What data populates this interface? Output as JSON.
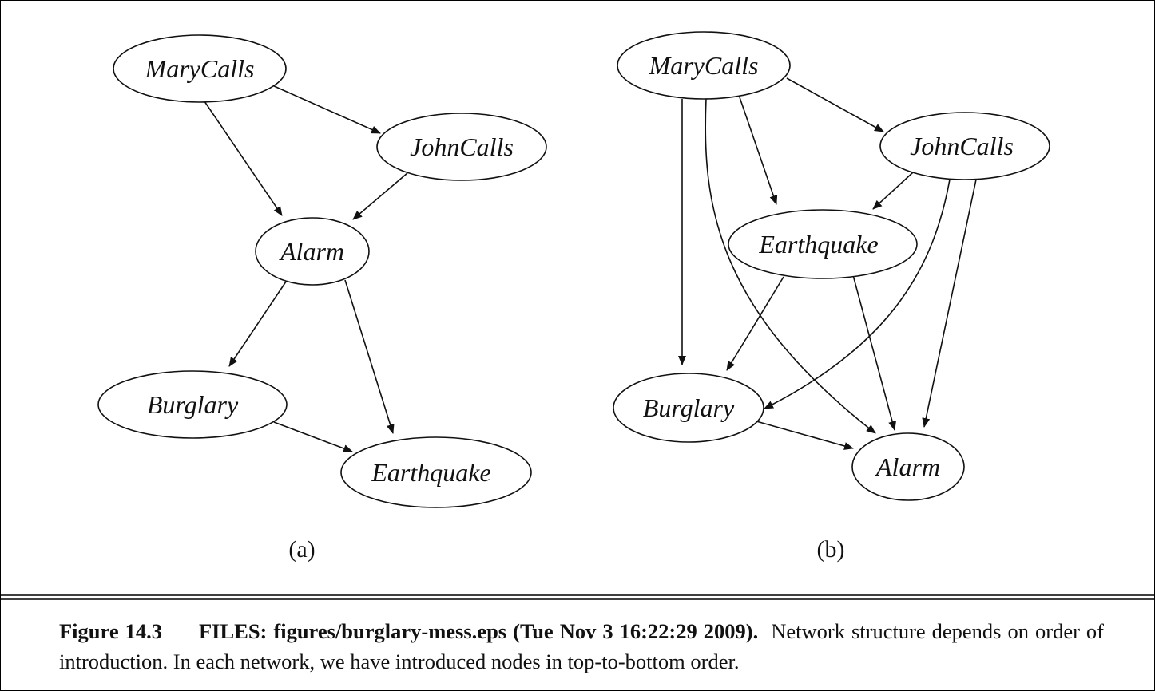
{
  "figure": {
    "panel_a": {
      "label": "(a)",
      "nodes": {
        "marycalls": "MaryCalls",
        "johncalls": "JohnCalls",
        "alarm": "Alarm",
        "burglary": "Burglary",
        "earthquake": "Earthquake"
      }
    },
    "panel_b": {
      "label": "(b)",
      "nodes": {
        "marycalls": "MaryCalls",
        "johncalls": "JohnCalls",
        "earthquake": "Earthquake",
        "burglary": "Burglary",
        "alarm": "Alarm"
      }
    },
    "caption": {
      "figure_number": "Figure 14.3",
      "files_note": "FILES: figures/burglary-mess.eps (Tue Nov 3 16:22:29 2009).",
      "text": "Network structure depends on order of introduction. In each network, we have introduced nodes in top-to-bottom order."
    }
  }
}
